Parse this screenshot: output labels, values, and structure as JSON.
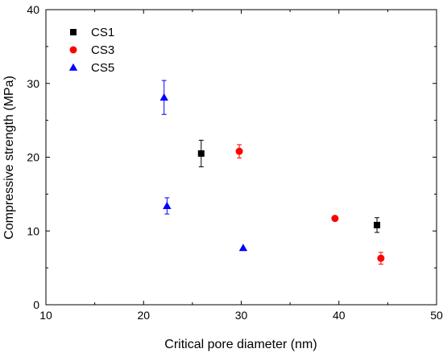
{
  "chart_data": {
    "type": "scatter",
    "xlabel": "Critical pore diameter (nm)",
    "ylabel": "Compressive strength (MPa)",
    "xlim": [
      10,
      50
    ],
    "ylim": [
      0,
      40
    ],
    "xticks": [
      10,
      20,
      30,
      40,
      50
    ],
    "yticks": [
      0,
      10,
      20,
      30,
      40
    ],
    "legend_position": "top-left",
    "grid": false,
    "series": [
      {
        "name": "CS1",
        "marker": "square",
        "color": "#000000",
        "points": [
          {
            "x": 25.9,
            "y": 20.5,
            "err": 1.8
          },
          {
            "x": 43.9,
            "y": 10.8,
            "err": 1.0
          }
        ]
      },
      {
        "name": "CS3",
        "marker": "circle",
        "color": "#ff0000",
        "points": [
          {
            "x": 29.8,
            "y": 20.8,
            "err": 0.9
          },
          {
            "x": 39.6,
            "y": 11.7,
            "err": 0.0
          },
          {
            "x": 44.3,
            "y": 6.3,
            "err": 0.8
          }
        ]
      },
      {
        "name": "CS5",
        "marker": "triangle",
        "color": "#0000ff",
        "points": [
          {
            "x": 22.1,
            "y": 28.1,
            "err": 2.3
          },
          {
            "x": 22.4,
            "y": 13.4,
            "err": 1.1
          },
          {
            "x": 30.2,
            "y": 7.7,
            "err": 0.0
          }
        ]
      }
    ]
  }
}
